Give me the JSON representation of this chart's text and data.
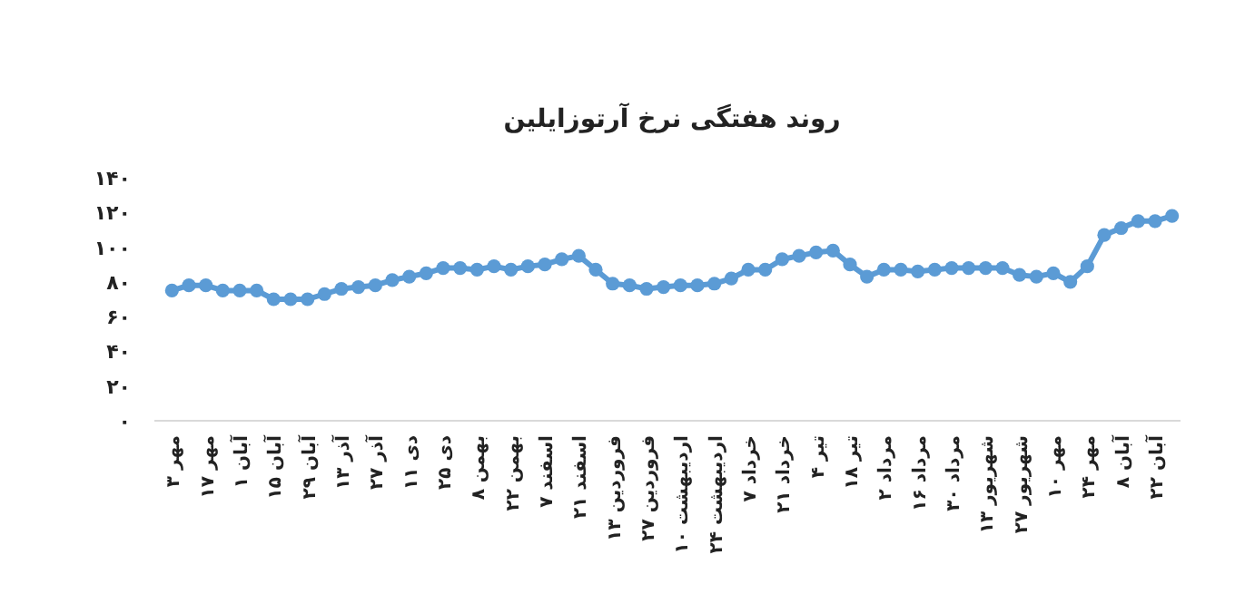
{
  "chart_data": {
    "type": "line",
    "title": "روند هفتگی نرخ آرتوزایلین",
    "categories": [
      "۳ مهر",
      null,
      "۱۷ مهر",
      null,
      "۱ آبان",
      null,
      "۱۵ آبان",
      null,
      "۲۹ آبان",
      null,
      "۱۳ آذر",
      null,
      "۲۷ آذر",
      null,
      "۱۱ دی",
      null,
      "۲۵ دی",
      null,
      "۸ بهمن",
      null,
      "۲۲ بهمن",
      null,
      "۷ اسفند",
      null,
      "۲۱ اسفند",
      null,
      "۱۳ فروردین",
      null,
      "۲۷ فروردین",
      null,
      "۱۰ اردیبهشت",
      null,
      "۲۴ اردیبهشت",
      null,
      "۷ خرداد",
      null,
      "۲۱ خرداد",
      null,
      "۴ تیر",
      null,
      "۱۸ تیر",
      null,
      "۲ مرداد",
      null,
      "۱۶ مرداد",
      null,
      "۳۰ مرداد",
      null,
      "۱۳ شهریور",
      null,
      "۲۷ شهریور",
      null,
      "۱۰ مهر",
      null,
      "۲۴ مهر",
      null,
      "۸ آبان",
      null,
      "۲۲ آبان",
      null
    ],
    "series": [
      {
        "color": "#5b9bd5",
        "values": [
          75,
          78,
          78,
          75,
          75,
          75,
          70,
          70,
          70,
          73,
          76,
          77,
          78,
          81,
          83,
          85,
          88,
          88,
          87,
          89,
          87,
          89,
          90,
          93,
          95,
          87,
          79,
          78,
          76,
          77,
          78,
          78,
          79,
          82,
          87,
          87,
          93,
          95,
          97,
          98,
          90,
          83,
          87,
          87,
          86,
          87,
          88,
          88,
          88,
          88,
          84,
          83,
          85,
          80,
          89,
          107,
          111,
          115,
          115,
          118
        ]
      }
    ],
    "ylim": [
      0,
      140
    ],
    "yticks": [
      {
        "value": 0,
        "label": "۰"
      },
      {
        "value": 20,
        "label": "۲۰"
      },
      {
        "value": 40,
        "label": "۴۰"
      },
      {
        "value": 60,
        "label": "۶۰"
      },
      {
        "value": 80,
        "label": "۸۰"
      },
      {
        "value": 100,
        "label": "۱۰۰"
      },
      {
        "value": 120,
        "label": "۱۲۰"
      },
      {
        "value": 140,
        "label": "۱۴۰"
      }
    ],
    "grid": false,
    "marker": "circle",
    "line_style": "solid"
  }
}
